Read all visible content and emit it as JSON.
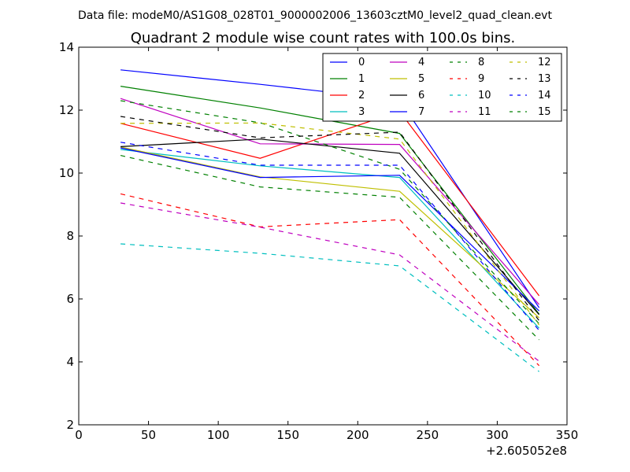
{
  "suptitle": "Data file: modeM0/AS1G08_028T01_9000002006_13603cztM0_level2_quad_clean.evt",
  "chart_data": {
    "type": "line",
    "title": "Quadrant 2 module wise count rates with 100.0s bins.",
    "xlabel": "",
    "ylabel": "",
    "x_offset_label": "+2.605052e8",
    "xlim": [
      0,
      350
    ],
    "ylim": [
      2,
      14
    ],
    "x_ticks": [
      0,
      50,
      100,
      150,
      200,
      250,
      300,
      350
    ],
    "y_ticks": [
      2,
      4,
      6,
      8,
      10,
      12,
      14
    ],
    "x": [
      30,
      130,
      230,
      330
    ],
    "legend_position": "top-right",
    "series": [
      {
        "name": "0",
        "color": "#0000ff",
        "dash": false,
        "values": [
          13.28,
          12.82,
          12.32,
          5.72
        ]
      },
      {
        "name": "1",
        "color": "#008000",
        "dash": false,
        "values": [
          12.76,
          12.07,
          11.26,
          5.52
        ]
      },
      {
        "name": "2",
        "color": "#ff0000",
        "dash": false,
        "values": [
          11.58,
          10.47,
          11.96,
          6.1
        ]
      },
      {
        "name": "3",
        "color": "#00bfbf",
        "dash": false,
        "values": [
          10.75,
          10.23,
          9.86,
          5.07
        ]
      },
      {
        "name": "4",
        "color": "#bf00bf",
        "dash": false,
        "values": [
          12.37,
          10.93,
          10.91,
          5.82
        ]
      },
      {
        "name": "5",
        "color": "#bfbf00",
        "dash": false,
        "values": [
          10.83,
          9.88,
          9.42,
          5.4
        ]
      },
      {
        "name": "6",
        "color": "#000000",
        "dash": false,
        "values": [
          10.84,
          11.08,
          10.63,
          5.5
        ]
      },
      {
        "name": "7",
        "color": "#0000ff",
        "dash": false,
        "values": [
          10.8,
          9.86,
          9.93,
          5.62
        ]
      },
      {
        "name": "8",
        "color": "#008000",
        "dash": true,
        "values": [
          12.3,
          11.6,
          10.12,
          5.21
        ]
      },
      {
        "name": "9",
        "color": "#ff0000",
        "dash": true,
        "values": [
          9.34,
          8.29,
          8.52,
          3.88
        ]
      },
      {
        "name": "10",
        "color": "#00bfbf",
        "dash": true,
        "values": [
          7.75,
          7.45,
          7.05,
          3.69
        ]
      },
      {
        "name": "11",
        "color": "#bf00bf",
        "dash": true,
        "values": [
          9.05,
          8.28,
          7.4,
          4.02
        ]
      },
      {
        "name": "12",
        "color": "#bfbf00",
        "dash": true,
        "values": [
          11.58,
          11.59,
          11.08,
          5.17
        ]
      },
      {
        "name": "13",
        "color": "#000000",
        "dash": true,
        "values": [
          11.8,
          11.12,
          11.3,
          5.31
        ]
      },
      {
        "name": "14",
        "color": "#0000ff",
        "dash": true,
        "values": [
          10.98,
          10.25,
          10.25,
          5.0
        ]
      },
      {
        "name": "15",
        "color": "#008000",
        "dash": true,
        "values": [
          10.56,
          9.56,
          9.23,
          4.7
        ]
      }
    ]
  }
}
